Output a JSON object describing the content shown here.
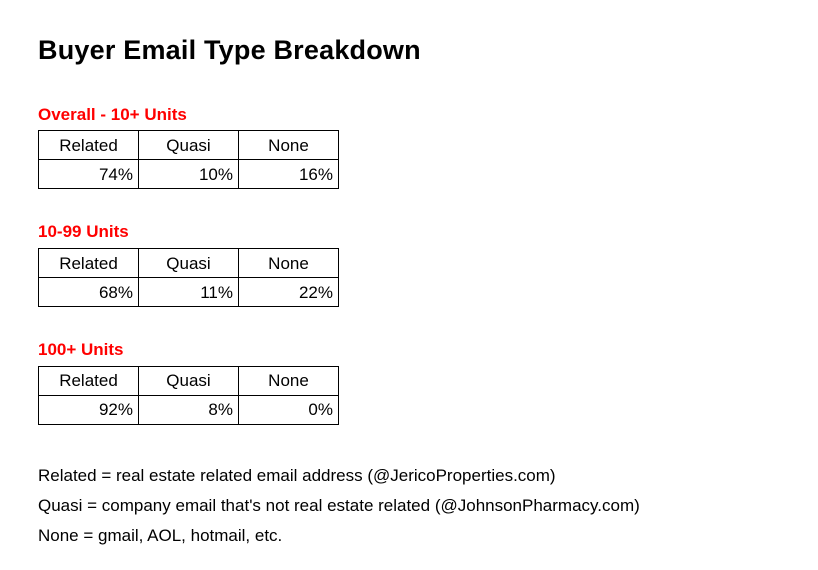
{
  "page": {
    "title": "Buyer Email Type Breakdown"
  },
  "colors": {
    "section_label_red": "#FF0000",
    "text": "#000000",
    "table_border": "#000000",
    "background": "#FFFFFF"
  },
  "chart_data": [
    {
      "type": "table",
      "title": "Overall - 10+ Units",
      "columns": [
        "Related",
        "Quasi",
        "None"
      ],
      "rows": [
        [
          "74%",
          "10%",
          "16%"
        ]
      ]
    },
    {
      "type": "table",
      "title": "10-99 Units",
      "columns": [
        "Related",
        "Quasi",
        "None"
      ],
      "rows": [
        [
          "68%",
          "11%",
          "22%"
        ]
      ]
    },
    {
      "type": "table",
      "title": "100+ Units",
      "columns": [
        "Related",
        "Quasi",
        "None"
      ],
      "rows": [
        [
          "92%",
          "8%",
          "0%"
        ]
      ]
    }
  ],
  "legend": {
    "lines": [
      "Related = real estate related email address (@JericoProperties.com)",
      "Quasi = company email that's not real estate related (@JohnsonPharmacy.com)",
      "None = gmail, AOL, hotmail, etc."
    ]
  }
}
